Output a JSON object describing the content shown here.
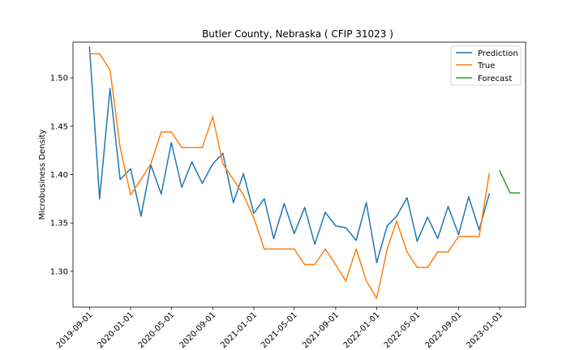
{
  "chart_data": {
    "type": "line",
    "title": "Butler County, Nebraska ( CFIP 31023 )",
    "xlabel": "",
    "ylabel": "Microbusiness Density",
    "xlim": [
      "2019-07-14",
      "2023-03-19"
    ],
    "ylim": [
      1.263,
      1.537
    ],
    "x_ticks": [
      "2019-09-01",
      "2020-01-01",
      "2020-05-01",
      "2020-09-01",
      "2021-01-01",
      "2021-05-01",
      "2021-09-01",
      "2022-01-01",
      "2022-05-01",
      "2022-09-01",
      "2023-01-01"
    ],
    "y_ticks": [
      "1.30",
      "1.35",
      "1.40",
      "1.45",
      "1.50"
    ],
    "grid": false,
    "legend": {
      "position": "top-right"
    },
    "series": [
      {
        "name": "Prediction",
        "color": "#1f77b4",
        "x": [
          "2019-09-01",
          "2019-10-01",
          "2019-11-01",
          "2019-12-01",
          "2020-01-01",
          "2020-02-01",
          "2020-03-01",
          "2020-04-01",
          "2020-05-01",
          "2020-06-01",
          "2020-07-01",
          "2020-08-01",
          "2020-09-01",
          "2020-10-01",
          "2020-11-01",
          "2020-12-01",
          "2021-01-01",
          "2021-02-01",
          "2021-03-01",
          "2021-04-01",
          "2021-05-01",
          "2021-06-01",
          "2021-07-01",
          "2021-08-01",
          "2021-09-01",
          "2021-10-01",
          "2021-11-01",
          "2021-12-01",
          "2022-01-01",
          "2022-02-01",
          "2022-03-01",
          "2022-04-01",
          "2022-05-01",
          "2022-06-01",
          "2022-07-01",
          "2022-08-01",
          "2022-09-01",
          "2022-10-01",
          "2022-11-01",
          "2022-12-01"
        ],
        "values": [
          1.532,
          1.375,
          1.489,
          1.395,
          1.406,
          1.357,
          1.41,
          1.38,
          1.433,
          1.387,
          1.413,
          1.391,
          1.411,
          1.422,
          1.371,
          1.401,
          1.36,
          1.375,
          1.334,
          1.37,
          1.339,
          1.366,
          1.328,
          1.361,
          1.347,
          1.345,
          1.332,
          1.371,
          1.309,
          1.347,
          1.357,
          1.376,
          1.331,
          1.356,
          1.334,
          1.367,
          1.338,
          1.377,
          1.343,
          1.38
        ]
      },
      {
        "name": "True",
        "color": "#ff7f0e",
        "x": [
          "2019-09-01",
          "2019-10-01",
          "2019-11-01",
          "2019-12-01",
          "2020-01-01",
          "2020-02-01",
          "2020-03-01",
          "2020-04-01",
          "2020-05-01",
          "2020-06-01",
          "2020-07-01",
          "2020-08-01",
          "2020-09-01",
          "2020-10-01",
          "2020-11-01",
          "2020-12-01",
          "2021-01-01",
          "2021-02-01",
          "2021-03-01",
          "2021-04-01",
          "2021-05-01",
          "2021-06-01",
          "2021-07-01",
          "2021-08-01",
          "2021-09-01",
          "2021-10-01",
          "2021-11-01",
          "2021-12-01",
          "2022-01-01",
          "2022-02-01",
          "2022-03-01",
          "2022-04-01",
          "2022-05-01",
          "2022-06-01",
          "2022-07-01",
          "2022-08-01",
          "2022-09-01",
          "2022-10-01",
          "2022-11-01",
          "2022-12-01"
        ],
        "values": [
          1.525,
          1.525,
          1.508,
          1.428,
          1.379,
          1.395,
          1.411,
          1.444,
          1.444,
          1.428,
          1.428,
          1.428,
          1.46,
          1.411,
          1.395,
          1.379,
          1.355,
          1.323,
          1.323,
          1.323,
          1.323,
          1.307,
          1.307,
          1.323,
          1.307,
          1.29,
          1.323,
          1.29,
          1.272,
          1.323,
          1.352,
          1.32,
          1.304,
          1.304,
          1.32,
          1.32,
          1.336,
          1.336,
          1.336,
          1.401
        ]
      },
      {
        "name": "Forecast",
        "color": "#2ca02c",
        "x": [
          "2023-01-01",
          "2023-02-01",
          "2023-03-01"
        ],
        "values": [
          1.404,
          1.381,
          1.381
        ]
      }
    ]
  }
}
